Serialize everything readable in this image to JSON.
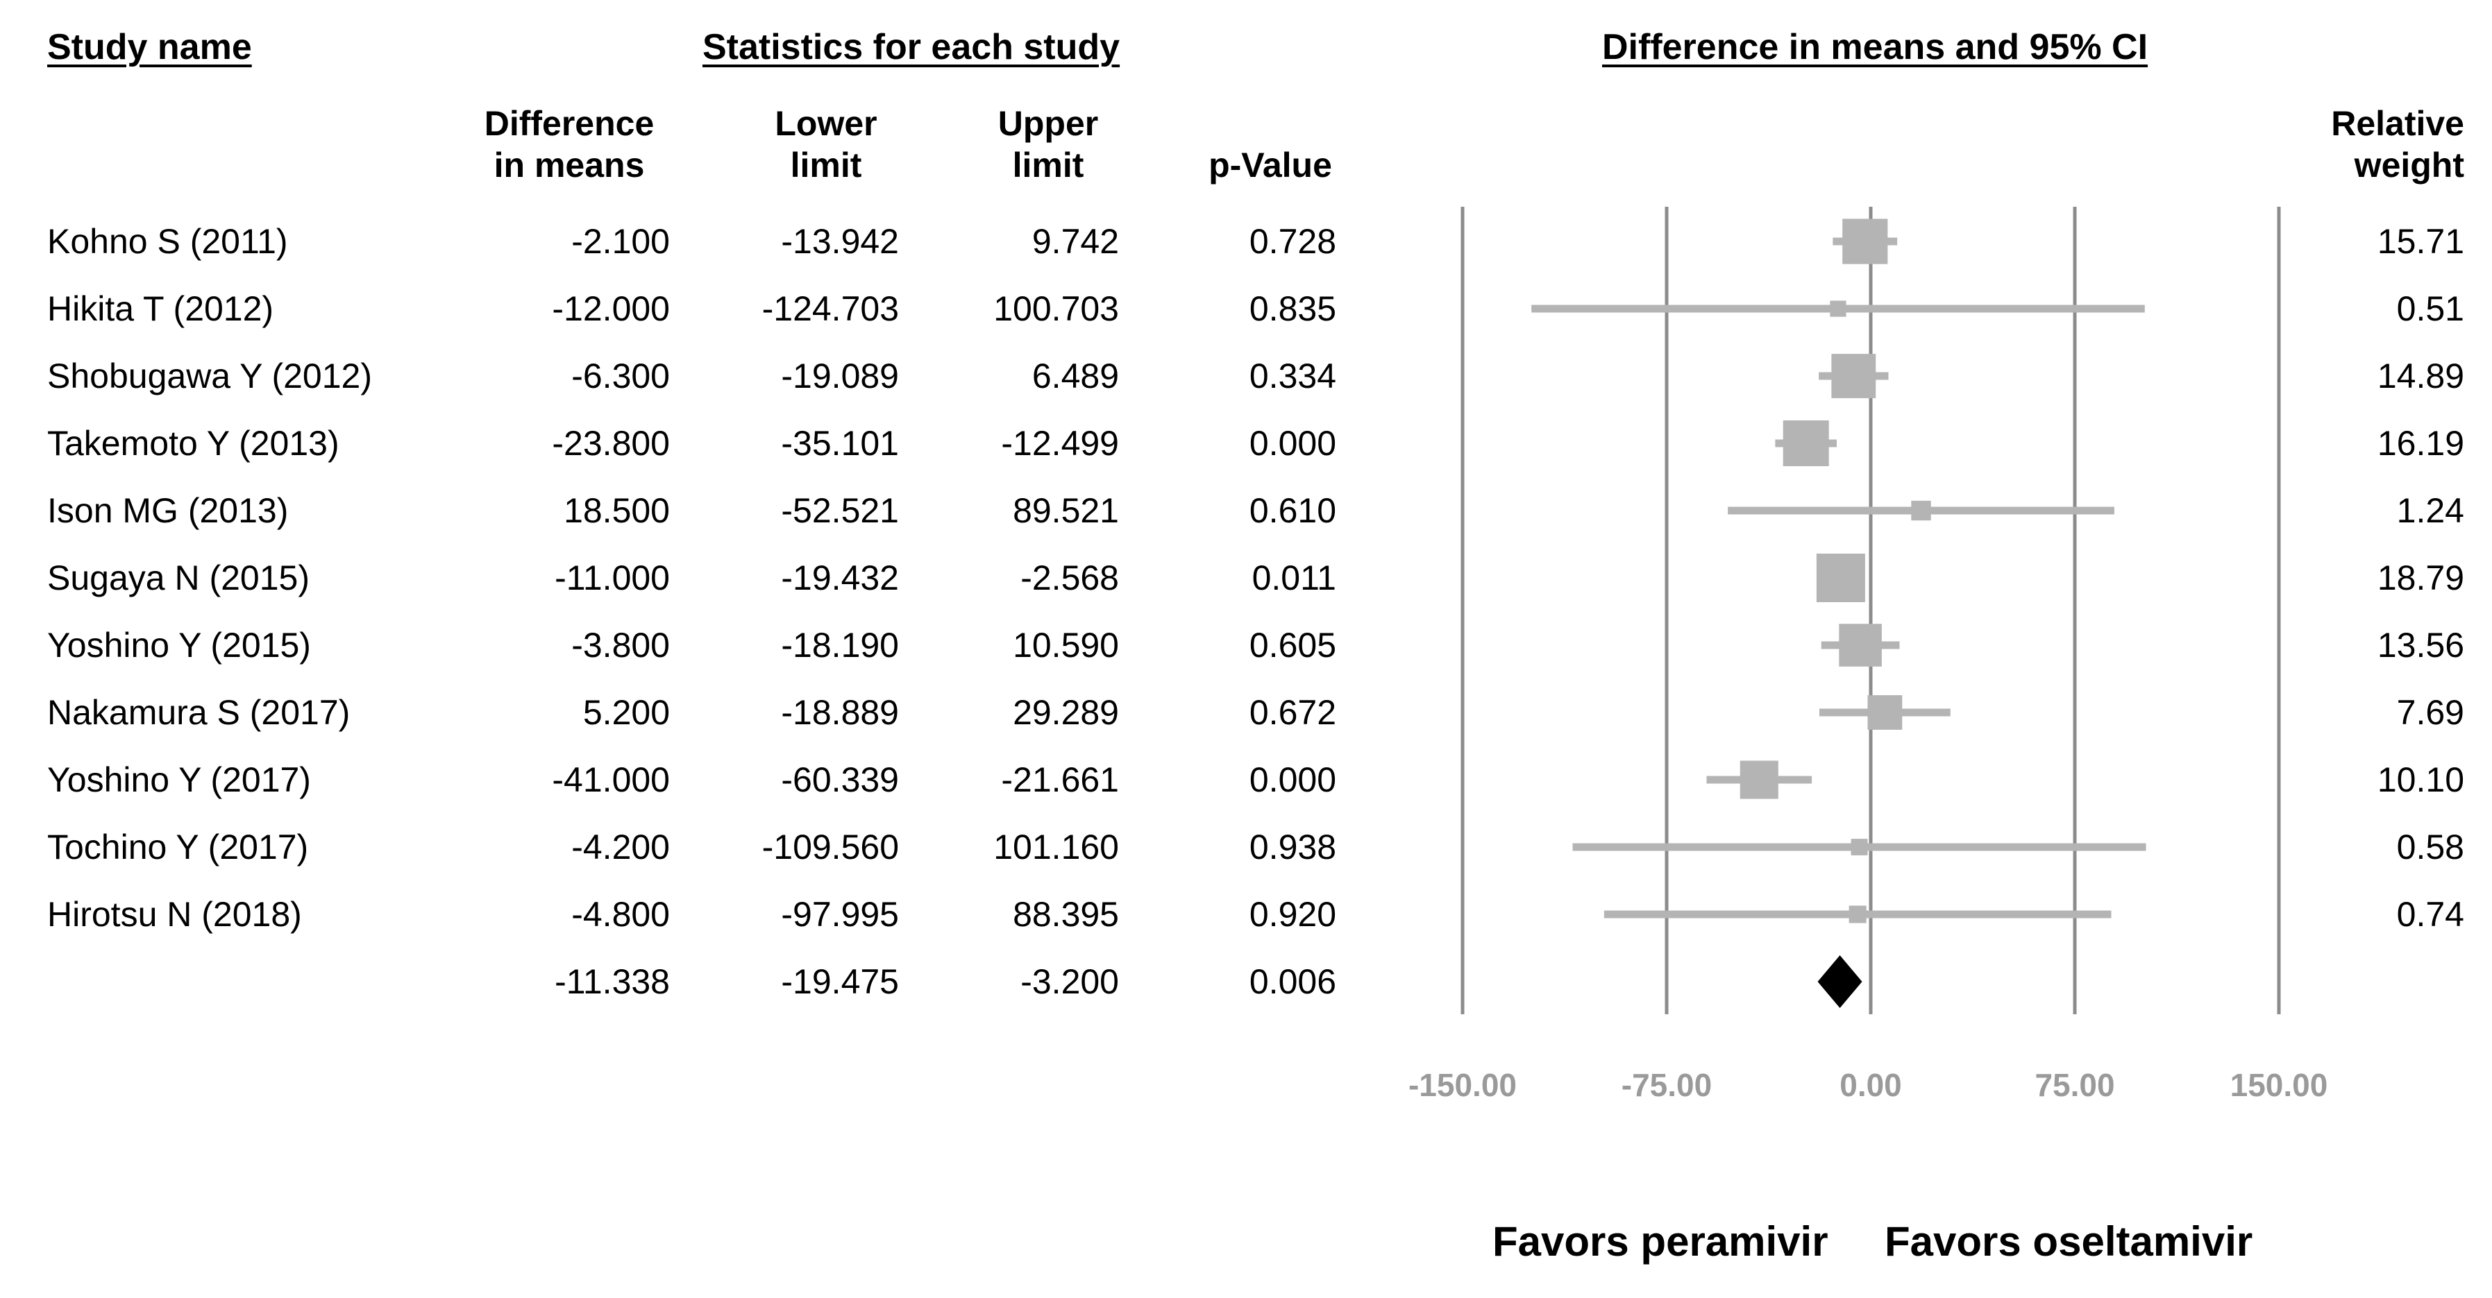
{
  "chart_data": {
    "type": "forest",
    "headers": {
      "study_name": "Study name",
      "stats_group": "Statistics for each study",
      "plot_group": "Difference in means and 95% CI",
      "diff_line1": "Difference",
      "diff_line2": "in means",
      "lower_line1": "Lower",
      "lower_line2": "limit",
      "upper_line1": "Upper",
      "upper_line2": "limit",
      "pvalue": "p-Value",
      "weight_line1": "Relative",
      "weight_line2": "weight"
    },
    "studies": [
      {
        "name": "Kohno S (2011)",
        "diff": -2.1,
        "lower": -13.942,
        "upper": 9.742,
        "p": 0.728,
        "weight": 15.71,
        "diff_text": "-2.100",
        "lower_text": "-13.942",
        "upper_text": "9.742",
        "p_text": "0.728",
        "weight_text": "15.71"
      },
      {
        "name": "Hikita  T (2012)",
        "diff": -12.0,
        "lower": -124.703,
        "upper": 100.703,
        "p": 0.835,
        "weight": 0.51,
        "diff_text": "-12.000",
        "lower_text": "-124.703",
        "upper_text": "100.703",
        "p_text": "0.835",
        "weight_text": "0.51"
      },
      {
        "name": "Shobugawa  Y (2012)",
        "diff": -6.3,
        "lower": -19.089,
        "upper": 6.489,
        "p": 0.334,
        "weight": 14.89,
        "diff_text": "-6.300",
        "lower_text": "-19.089",
        "upper_text": "6.489",
        "p_text": "0.334",
        "weight_text": "14.89"
      },
      {
        "name": "Takemoto  Y (2013)",
        "diff": -23.8,
        "lower": -35.101,
        "upper": -12.499,
        "p": 0.0,
        "weight": 16.19,
        "diff_text": "-23.800",
        "lower_text": "-35.101",
        "upper_text": "-12.499",
        "p_text": "0.000",
        "weight_text": "16.19"
      },
      {
        "name": "Ison MG (2013)",
        "diff": 18.5,
        "lower": -52.521,
        "upper": 89.521,
        "p": 0.61,
        "weight": 1.24,
        "diff_text": "18.500",
        "lower_text": "-52.521",
        "upper_text": "89.521",
        "p_text": "0.610",
        "weight_text": "1.24"
      },
      {
        "name": "Sugaya N (2015)",
        "diff": -11.0,
        "lower": -19.432,
        "upper": -2.568,
        "p": 0.011,
        "weight": 18.79,
        "diff_text": "-11.000",
        "lower_text": "-19.432",
        "upper_text": "-2.568",
        "p_text": "0.011",
        "weight_text": "18.79"
      },
      {
        "name": "Yoshino Y (2015)",
        "diff": -3.8,
        "lower": -18.19,
        "upper": 10.59,
        "p": 0.605,
        "weight": 13.56,
        "diff_text": "-3.800",
        "lower_text": "-18.190",
        "upper_text": "10.590",
        "p_text": "0.605",
        "weight_text": "13.56"
      },
      {
        "name": "Nakamura S (2017)",
        "diff": 5.2,
        "lower": -18.889,
        "upper": 29.289,
        "p": 0.672,
        "weight": 7.69,
        "diff_text": "5.200",
        "lower_text": "-18.889",
        "upper_text": "29.289",
        "p_text": "0.672",
        "weight_text": "7.69"
      },
      {
        "name": "Yoshino Y (2017)",
        "diff": -41.0,
        "lower": -60.339,
        "upper": -21.661,
        "p": 0.0,
        "weight": 10.1,
        "diff_text": "-41.000",
        "lower_text": "-60.339",
        "upper_text": "-21.661",
        "p_text": "0.000",
        "weight_text": "10.10"
      },
      {
        "name": "Tochino Y (2017)",
        "diff": -4.2,
        "lower": -109.56,
        "upper": 101.16,
        "p": 0.938,
        "weight": 0.58,
        "diff_text": "-4.200",
        "lower_text": "-109.560",
        "upper_text": "101.160",
        "p_text": "0.938",
        "weight_text": "0.58"
      },
      {
        "name": "Hirotsu N (2018)",
        "diff": -4.8,
        "lower": -97.995,
        "upper": 88.395,
        "p": 0.92,
        "weight": 0.74,
        "diff_text": "-4.800",
        "lower_text": "-97.995",
        "upper_text": "88.395",
        "p_text": "0.920",
        "weight_text": "0.74"
      }
    ],
    "pooled": {
      "diff": -11.338,
      "lower": -19.475,
      "upper": -3.2,
      "p": 0.006,
      "diff_text": "-11.338",
      "lower_text": "-19.475",
      "upper_text": "-3.200",
      "p_text": "0.006"
    },
    "x_axis": {
      "range": [
        -150,
        150
      ],
      "ticks": [
        -150,
        -75,
        0,
        75,
        150
      ],
      "tick_labels": [
        "-150.00",
        "-75.00",
        "0.00",
        "75.00",
        "150.00"
      ]
    },
    "favors_left": "Favors peramivir",
    "favors_right": "Favors oseltamivir",
    "colors": {
      "study_mark": "#b4b4b4",
      "pooled_mark": "#000000",
      "vlines": "#8c8c8c",
      "tick_text": "#9a9a9a"
    }
  }
}
